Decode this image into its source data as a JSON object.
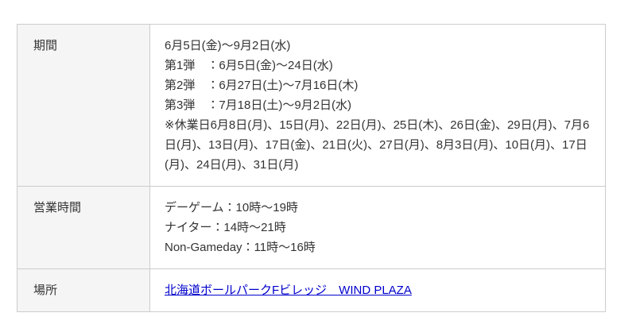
{
  "colors": {
    "label_bg": "#f5f5f5",
    "border": "#cccccc",
    "text": "#333333",
    "link": "#0000cc",
    "page_bg": "#ffffff"
  },
  "table": {
    "rows": [
      {
        "label": "期間",
        "lines": [
          "6月5日(金)〜9月2日(水)",
          "第1弾　：6月5日(金)〜24日(水)",
          "第2弾　：6月27日(土)〜7月16日(木)",
          "第3弾　：7月18日(土)〜9月2日(水)",
          "※休業日6月8日(月)、15日(月)、22日(月)、25日(木)、26日(金)、29日(月)、7月6日(月)、13日(月)、17日(金)、21日(火)、27日(月)、8月3日(月)、10日(月)、17日(月)、24日(月)、31日(月)"
        ]
      },
      {
        "label": "営業時間",
        "lines": [
          "デーゲーム：10時〜19時",
          "ナイター：14時〜21時",
          "Non-Gameday：11時〜16時"
        ]
      },
      {
        "label": "場所",
        "link_text": "北海道ボールパークFビレッジ　WIND PLAZA"
      }
    ]
  }
}
